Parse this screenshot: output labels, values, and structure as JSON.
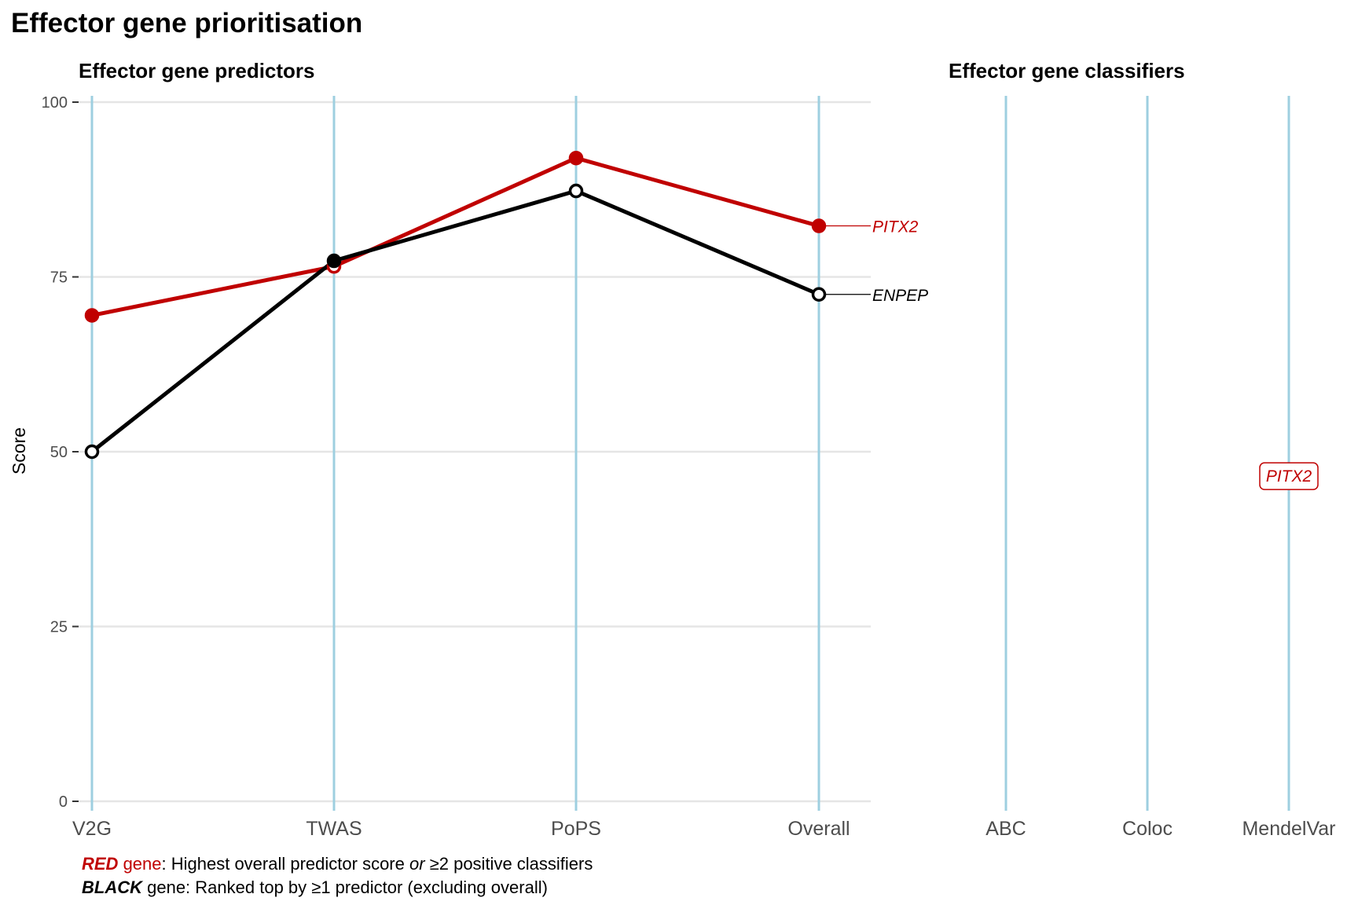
{
  "title": "Effector gene prioritisation",
  "colors": {
    "red": "#c00000",
    "black": "#000000",
    "axis_line": "#9ecfe0",
    "grid": "#e5e5e5"
  },
  "chart_data": [
    {
      "type": "line",
      "title": "Effector gene predictors",
      "ylabel": "Score",
      "ylim": [
        0,
        100
      ],
      "yticks": [
        0,
        25,
        50,
        75,
        100
      ],
      "categories": [
        "V2G",
        "TWAS",
        "PoPS",
        "Overall"
      ],
      "grid": true,
      "series": [
        {
          "name": "PITX2",
          "color": "#c00000",
          "values": [
            69.5,
            76.5,
            92,
            82.3
          ],
          "filled": [
            true,
            false,
            true,
            true
          ]
        },
        {
          "name": "ENPEP",
          "color": "#000000",
          "values": [
            50,
            77.3,
            87.3,
            72.5
          ],
          "filled": [
            false,
            true,
            false,
            false
          ]
        }
      ]
    },
    {
      "type": "scatter",
      "title": "Effector gene classifiers",
      "ylim": [
        0,
        100
      ],
      "categories": [
        "ABC",
        "Coloc",
        "MendelVar"
      ],
      "labels": [
        {
          "category": "MendelVar",
          "value": 46.5,
          "text": "PITX2",
          "color": "#c00000"
        }
      ]
    }
  ],
  "caption": {
    "line1_key": "RED",
    "line1_gene": " gene",
    "line1_text_a": ": Highest overall predictor score ",
    "line1_or": "or",
    "line1_text_b": " ≥2 positive classifiers",
    "line2_key": "BLACK",
    "line2_text": " gene: Ranked top by ≥1 predictor (excluding overall)"
  }
}
